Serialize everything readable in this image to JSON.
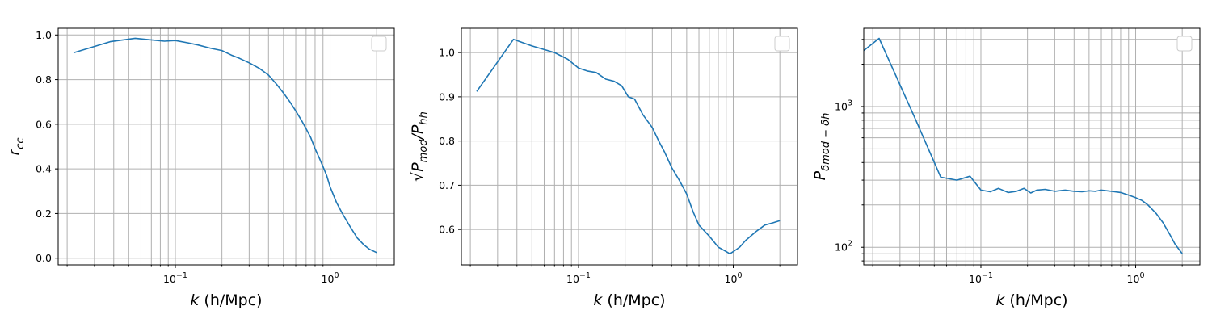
{
  "colors": {
    "series": "#1f77b4",
    "grid": "#b0b0b0"
  },
  "chart_data": [
    {
      "type": "line",
      "xscale": "log",
      "yscale": "linear",
      "xlabel_var": "k",
      "xlabel_unit": " (h/Mpc)",
      "ylabel_base": "r",
      "ylabel_sub": "cc",
      "xlim": [
        0.0175,
        2.6
      ],
      "ylim": [
        -0.03,
        1.03
      ],
      "xticks": [
        {
          "v": 0.1,
          "base": "10",
          "exp": "−1"
        },
        {
          "v": 1,
          "base": "10",
          "exp": "0"
        }
      ],
      "yticks": [
        {
          "v": 0,
          "label": "0.0"
        },
        {
          "v": 0.2,
          "label": "0.2"
        },
        {
          "v": 0.4,
          "label": "0.4"
        },
        {
          "v": 0.6,
          "label": "0.6"
        },
        {
          "v": 0.8,
          "label": "0.8"
        },
        {
          "v": 1.0,
          "label": "1.0"
        }
      ],
      "grid": true,
      "legend": "top-right (empty)",
      "series": [
        {
          "x": [
            0.022,
            0.038,
            0.055,
            0.07,
            0.085,
            0.1,
            0.12,
            0.14,
            0.17,
            0.2,
            0.23,
            0.26,
            0.3,
            0.35,
            0.4,
            0.45,
            0.5,
            0.55,
            0.6,
            0.65,
            0.7,
            0.75,
            0.8,
            0.85,
            0.9,
            0.95,
            1.0,
            1.1,
            1.2,
            1.35,
            1.5,
            1.65,
            1.8,
            2.0
          ],
          "y": [
            0.92,
            0.97,
            0.985,
            0.978,
            0.972,
            0.975,
            0.965,
            0.955,
            0.94,
            0.93,
            0.91,
            0.895,
            0.875,
            0.85,
            0.82,
            0.78,
            0.74,
            0.7,
            0.66,
            0.62,
            0.58,
            0.54,
            0.49,
            0.45,
            0.41,
            0.37,
            0.32,
            0.25,
            0.2,
            0.14,
            0.09,
            0.06,
            0.04,
            0.025
          ]
        }
      ]
    },
    {
      "type": "line",
      "xscale": "log",
      "yscale": "linear",
      "xlabel_var": "k",
      "xlabel_unit": " (h/Mpc)",
      "ylabel_base": "√P",
      "ylabel_sub": "mod",
      "ylabel_mid": "/P",
      "ylabel_sub2": "hh",
      "xlim": [
        0.0175,
        2.6
      ],
      "ylim": [
        0.52,
        1.055
      ],
      "xticks": [
        {
          "v": 0.1,
          "base": "10",
          "exp": "−1"
        },
        {
          "v": 1,
          "base": "10",
          "exp": "0"
        }
      ],
      "yticks": [
        {
          "v": 0.6,
          "label": "0.6"
        },
        {
          "v": 0.7,
          "label": "0.7"
        },
        {
          "v": 0.8,
          "label": "0.8"
        },
        {
          "v": 0.9,
          "label": "0.9"
        },
        {
          "v": 1.0,
          "label": "1.0"
        }
      ],
      "grid": true,
      "legend": "top-right (empty)",
      "series": [
        {
          "x": [
            0.022,
            0.038,
            0.05,
            0.07,
            0.085,
            0.1,
            0.115,
            0.13,
            0.15,
            0.17,
            0.19,
            0.21,
            0.23,
            0.26,
            0.3,
            0.33,
            0.36,
            0.4,
            0.45,
            0.5,
            0.55,
            0.6,
            0.7,
            0.8,
            0.9,
            0.95,
            1.0,
            1.1,
            1.2,
            1.4,
            1.6,
            1.8,
            2.0
          ],
          "y": [
            0.912,
            1.03,
            1.015,
            1.0,
            0.985,
            0.965,
            0.958,
            0.955,
            0.94,
            0.935,
            0.925,
            0.9,
            0.895,
            0.86,
            0.83,
            0.8,
            0.775,
            0.74,
            0.71,
            0.68,
            0.64,
            0.61,
            0.585,
            0.56,
            0.55,
            0.545,
            0.55,
            0.56,
            0.575,
            0.595,
            0.61,
            0.615,
            0.62
          ]
        }
      ]
    },
    {
      "type": "line",
      "xscale": "log",
      "yscale": "log",
      "xlabel_var": "k",
      "xlabel_unit": " (h/Mpc)",
      "ylabel_base": "P",
      "ylabel_sub": "δmod − δh",
      "xlim": [
        0.0175,
        2.6
      ],
      "ylim": [
        75,
        3600
      ],
      "xticks": [
        {
          "v": 0.1,
          "base": "10",
          "exp": "−1"
        },
        {
          "v": 1,
          "base": "10",
          "exp": "0"
        }
      ],
      "yticks": [
        {
          "v": 100,
          "base": "10",
          "exp": "2"
        },
        {
          "v": 1000,
          "base": "10",
          "exp": "3"
        }
      ],
      "grid": true,
      "legend": "top-right (empty)",
      "series": [
        {
          "x": [
            0.0175,
            0.022,
            0.038,
            0.055,
            0.07,
            0.085,
            0.1,
            0.115,
            0.13,
            0.15,
            0.17,
            0.19,
            0.21,
            0.23,
            0.26,
            0.3,
            0.35,
            0.4,
            0.45,
            0.5,
            0.55,
            0.6,
            0.7,
            0.8,
            0.9,
            1.0,
            1.1,
            1.2,
            1.35,
            1.5,
            1.65,
            1.8,
            2.0
          ],
          "y": [
            2500,
            3050,
            800,
            315,
            300,
            320,
            255,
            248,
            262,
            245,
            250,
            262,
            243,
            255,
            258,
            250,
            255,
            250,
            248,
            252,
            250,
            255,
            250,
            245,
            235,
            225,
            215,
            200,
            175,
            150,
            125,
            105,
            90
          ]
        }
      ]
    }
  ]
}
